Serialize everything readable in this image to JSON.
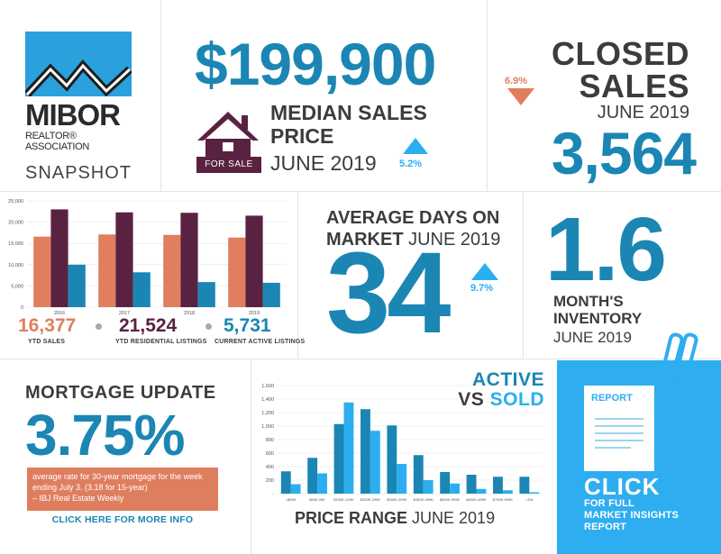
{
  "logo": {
    "name": "MIBOR",
    "sub": "REALTOR® ASSOCIATION",
    "snapshot": "SNAPSHOT"
  },
  "median": {
    "value": "$199,900",
    "title": "MEDIAN SALES PRICE",
    "date": "JUNE 2019",
    "change": "5.2%",
    "for_sale": "FOR SALE"
  },
  "closed": {
    "title_line1": "CLOSED",
    "title_line2": "SALES",
    "date": "JUNE 2019",
    "value": "3,564",
    "change": "6.9%"
  },
  "ytd": {
    "stats": [
      {
        "value": "16,377",
        "label": "YTD SALES"
      },
      {
        "value": "21,524",
        "label": "YTD RESIDENTIAL LISTINGS"
      },
      {
        "value": "5,731",
        "label": "CURRENT ACTIVE LISTINGS"
      }
    ]
  },
  "avg_days": {
    "title_bold1": "AVERAGE DAYS ON",
    "title_bold2": "MARKET",
    "title_date": "JUNE 2019",
    "value": "34",
    "change": "9.7%"
  },
  "inventory": {
    "value": "1.6",
    "title": "MONTH'S INVENTORY",
    "date": "JUNE 2019"
  },
  "mortgage": {
    "title": "MORTGAGE UPDATE",
    "value": "3.75%",
    "note": "average rate for 30-year mortgage for the week ending July 3. (3.18 for 15-year)",
    "source": "– IBJ Real Estate Weekly",
    "link": "CLICK HERE FOR MORE INFO"
  },
  "avs": {
    "title_active": "ACTIVE",
    "title_vs": "VS",
    "title_sold": "SOLD",
    "xtitle_bold": "PRICE RANGE",
    "xtitle_date": "JUNE 2019"
  },
  "report": {
    "doc_label": "REPORT",
    "click": "CLICK",
    "sub1": "FOR FULL",
    "sub2": "MARKET INSIGHTS",
    "sub3": "REPORT"
  },
  "colors": {
    "teal": "#1b86b3",
    "light_blue": "#2baef0",
    "coral": "#e07e5e",
    "plum": "#5a2241"
  },
  "chart_data": [
    {
      "type": "bar",
      "categories": [
        "2016",
        "2017",
        "2018",
        "2019"
      ],
      "series": [
        {
          "values": [
            16600,
            17100,
            17000,
            16377
          ]
        },
        {
          "values": [
            23000,
            22300,
            22200,
            21524
          ]
        },
        {
          "values": [
            10000,
            8200,
            5900,
            5731
          ]
        }
      ],
      "colors": [
        "#e07e5e",
        "#5a2241",
        "#1b86b3"
      ],
      "ylim": [
        0,
        25000
      ],
      "yticks": [
        "0",
        "5,000",
        "10,000",
        "15,000",
        "20,000",
        "25,000"
      ],
      "ytick_values": [
        0,
        5000,
        10000,
        15000,
        20000,
        25000
      ]
    },
    {
      "type": "bar",
      "categories": [
        "<$50K",
        "$50K-99K",
        "$100K-199K",
        "$200K-299K",
        "$300K-399K",
        "$400K-499K",
        "$500K-599K",
        "$600K-699K",
        "$700K-999K",
        ">1M"
      ],
      "series": [
        {
          "name": "ACTIVE",
          "values": [
            330,
            530,
            1030,
            1250,
            1010,
            570,
            320,
            280,
            250,
            250
          ]
        },
        {
          "name": "SOLD",
          "values": [
            140,
            300,
            1350,
            930,
            440,
            200,
            150,
            70,
            50,
            20
          ]
        }
      ],
      "colors": [
        "#1b86b3",
        "#2baef0"
      ],
      "ylim": [
        0,
        1600
      ],
      "yticks": [
        "-",
        "200",
        "400",
        "600",
        "800",
        "1,000",
        "1,200",
        "1,400",
        "1,600"
      ],
      "ytick_values": [
        0,
        200,
        400,
        600,
        800,
        1000,
        1200,
        1400,
        1600
      ]
    }
  ]
}
